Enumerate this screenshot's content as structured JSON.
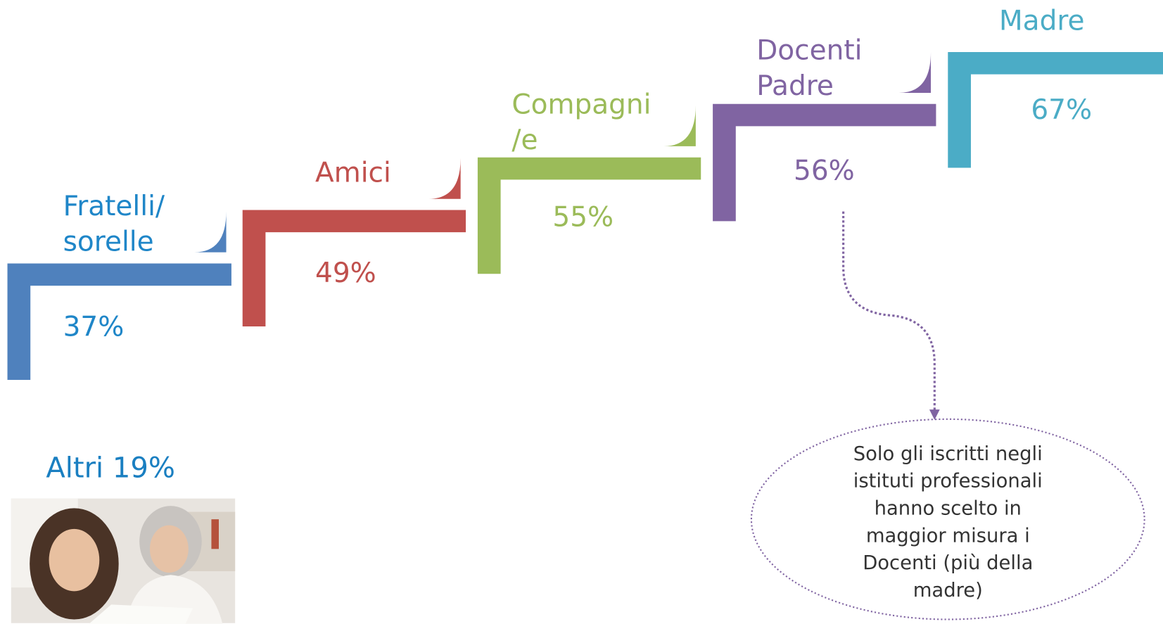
{
  "steps": [
    {
      "label": [
        "Fratelli/",
        "sorelle"
      ],
      "value": "37%"
    },
    {
      "label": [
        "Amici"
      ],
      "value": "49%"
    },
    {
      "label": [
        "Compagni",
        "/e"
      ],
      "value": "55%"
    },
    {
      "label": [
        "Docenti",
        "Padre"
      ],
      "value": "56%"
    },
    {
      "label": [
        "Madre"
      ],
      "value": "67%"
    }
  ],
  "others": "Altri 19%",
  "note": [
    "Solo gli iscritti negli",
    "istituti professionali",
    "hanno scelto in",
    "maggior misura i",
    "Docenti (più della",
    "madre)"
  ]
}
